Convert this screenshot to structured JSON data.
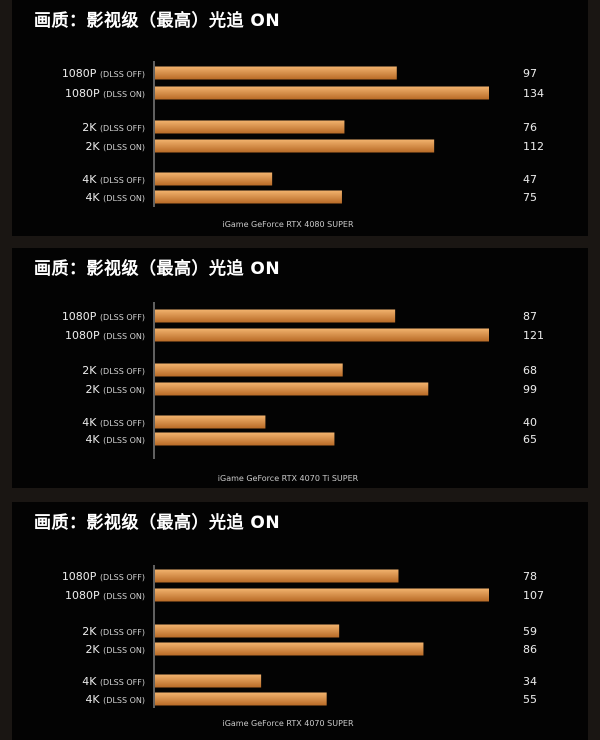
{
  "chart_data": [
    {
      "type": "bar",
      "title": "画质：影视级（最高）光追 ON",
      "caption": "iGame GeForce RTX 4080 SUPER",
      "categories": [
        {
          "main": "1080P",
          "sub": "(DLSS OFF)"
        },
        {
          "main": "1080P",
          "sub": "(DLSS ON)"
        },
        {
          "main": "2K",
          "sub": "(DLSS OFF)"
        },
        {
          "main": "2K",
          "sub": "(DLSS ON)"
        },
        {
          "main": "4K",
          "sub": "(DLSS OFF)"
        },
        {
          "main": "4K",
          "sub": "(DLSS ON)"
        }
      ],
      "values": [
        97,
        134,
        76,
        112,
        47,
        75
      ],
      "xlim": [
        0,
        134
      ],
      "grid": false
    },
    {
      "type": "bar",
      "title": "画质：影视级（最高）光追 ON",
      "caption": "iGame GeForce RTX 4070 Ti SUPER",
      "categories": [
        {
          "main": "1080P",
          "sub": "(DLSS OFF)"
        },
        {
          "main": "1080P",
          "sub": "(DLSS ON)"
        },
        {
          "main": "2K",
          "sub": "(DLSS OFF)"
        },
        {
          "main": "2K",
          "sub": "(DLSS ON)"
        },
        {
          "main": "4K",
          "sub": "(DLSS OFF)"
        },
        {
          "main": "4K",
          "sub": "(DLSS ON)"
        }
      ],
      "values": [
        87,
        121,
        68,
        99,
        40,
        65
      ],
      "xlim": [
        0,
        121
      ],
      "grid": false
    },
    {
      "type": "bar",
      "title": "画质：影视级（最高）光追 ON",
      "caption": "iGame GeForce RTX 4070 SUPER",
      "categories": [
        {
          "main": "1080P",
          "sub": "(DLSS OFF)"
        },
        {
          "main": "1080P",
          "sub": "(DLSS ON)"
        },
        {
          "main": "2K",
          "sub": "(DLSS OFF)"
        },
        {
          "main": "2K",
          "sub": "(DLSS ON)"
        },
        {
          "main": "4K",
          "sub": "(DLSS OFF)"
        },
        {
          "main": "4K",
          "sub": "(DLSS ON)"
        }
      ],
      "values": [
        78,
        107,
        59,
        86,
        34,
        55
      ],
      "xlim": [
        0,
        107
      ],
      "grid": false
    }
  ],
  "colors": {
    "bar_light": "#f2b36e",
    "bar_dark": "#b86a26",
    "panel_bg": "#030303",
    "page_bg": "#1a1613"
  }
}
